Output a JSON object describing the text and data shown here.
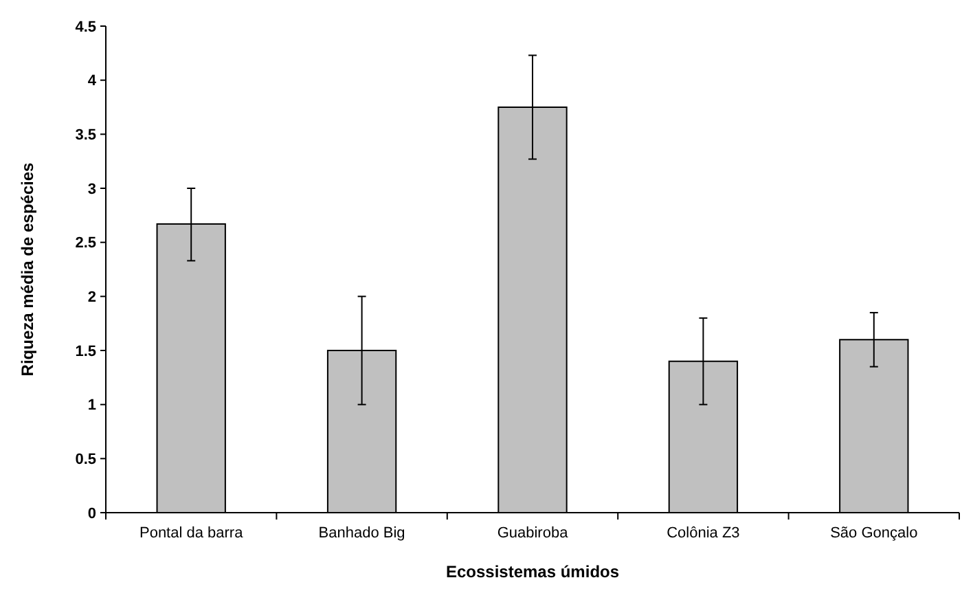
{
  "chart_data": {
    "type": "bar",
    "xlabel": "Ecossistemas úmidos",
    "ylabel": "Riqueza média de espécies",
    "categories": [
      "Pontal da barra",
      "Banhado Big",
      "Guabiroba",
      "Colônia Z3",
      "São Gonçalo"
    ],
    "values": [
      2.67,
      1.5,
      3.75,
      1.4,
      1.6
    ],
    "color": "#c0c0c0",
    "errors": [
      [
        2.33,
        3.0
      ],
      [
        1.0,
        2.0
      ],
      [
        3.27,
        4.23
      ],
      [
        1.0,
        1.8
      ],
      [
        1.35,
        1.85
      ]
    ],
    "ylim": [
      0,
      4.5
    ],
    "yticks": [
      0,
      0.5,
      1,
      1.5,
      2,
      2.5,
      3,
      3.5,
      4,
      4.5
    ],
    "grid": false
  }
}
